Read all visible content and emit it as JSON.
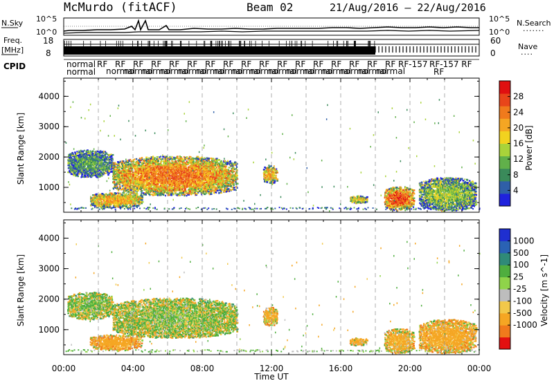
{
  "header": {
    "station": "McMurdo (fitACF)",
    "beam": "Beam 02",
    "date_range": "21/Aug/2016 – 22/Aug/2016"
  },
  "strips": {
    "nsky_label": "N.Sky",
    "nsearch_label": "N.Search",
    "nsky_ticks": [
      "10^5",
      "10^0"
    ],
    "nsearch_ticks": [
      "10^5",
      "10^0"
    ],
    "freq_label_1": "Freq.",
    "freq_label_2": "[MHz]",
    "freq_ticks": [
      "18",
      "8"
    ],
    "nave_label": "Nave",
    "nave_ticks": [
      "60",
      "0"
    ],
    "cpid_label": "CPID",
    "cpid_normal_1": "normal",
    "cpid_normal_2": "normal",
    "cpid_tail": "RF-157",
    "cpid_tail_2": "RF",
    "cpid_tail_3": "RF-157 RF"
  },
  "colors": {
    "power": [
      "#1f22dd",
      "#2f5fa8",
      "#3a8a5a",
      "#61b04a",
      "#a9d33a",
      "#f2d21f",
      "#f5a623",
      "#f07a1c",
      "#e8451a",
      "#e01010"
    ],
    "velocity": [
      "#e31010",
      "#f07a1c",
      "#f5a623",
      "#f2c84a",
      "#bdbdbd",
      "#8fd34a",
      "#4fae3e",
      "#2f8a78",
      "#2a62b4",
      "#1f2fd0"
    ]
  },
  "chart_data": [
    {
      "type": "heatmap",
      "panel": "power",
      "xlabel": "",
      "ylabel": "Slant Range [km]",
      "xlim": [
        "00:00",
        "24:00"
      ],
      "ylim": [
        180,
        4600
      ],
      "yticks": [
        "1000",
        "2000",
        "3000",
        "4000"
      ],
      "colorbar": {
        "label": "Power [dB]",
        "ticks": [
          "4",
          "8",
          "12",
          "16",
          "20",
          "24",
          "28"
        ],
        "range": [
          0,
          32
        ]
      },
      "echo_regions": [
        {
          "t_start": 0.2,
          "t_end": 2.8,
          "r_min": 1300,
          "r_max": 2200,
          "level": 10
        },
        {
          "t_start": 2.8,
          "t_end": 10.0,
          "r_min": 700,
          "r_max": 2000,
          "level": 25
        },
        {
          "t_start": 1.5,
          "t_end": 4.5,
          "r_min": 300,
          "r_max": 800,
          "level": 22
        },
        {
          "t_start": 11.5,
          "t_end": 12.3,
          "r_min": 1100,
          "r_max": 1700,
          "level": 22
        },
        {
          "t_start": 16.5,
          "t_end": 17.5,
          "r_min": 450,
          "r_max": 700,
          "level": 18
        },
        {
          "t_start": 18.5,
          "t_end": 20.2,
          "r_min": 200,
          "r_max": 1000,
          "level": 28
        },
        {
          "t_start": 20.5,
          "t_end": 23.8,
          "r_min": 200,
          "r_max": 1300,
          "level": 14
        }
      ]
    },
    {
      "type": "heatmap",
      "panel": "velocity",
      "xlabel": "Time UT",
      "ylabel": "Slant Range [km]",
      "xlim": [
        "00:00",
        "24:00"
      ],
      "ylim": [
        180,
        4600
      ],
      "xticks": [
        "00:00",
        "04:00",
        "08:00",
        "12:00",
        "16:00",
        "20:00",
        "00:00"
      ],
      "yticks": [
        "1000",
        "2000",
        "3000",
        "4000"
      ],
      "colorbar": {
        "label": "Velocity [m s^-1]",
        "ticks": [
          "1000",
          "500",
          "100",
          "25",
          "-25",
          "-100",
          "-500",
          "-1000"
        ]
      },
      "echo_regions": [
        {
          "t_start": 0.2,
          "t_end": 2.8,
          "r_min": 1300,
          "r_max": 2200,
          "level": 100
        },
        {
          "t_start": 2.8,
          "t_end": 10.0,
          "r_min": 700,
          "r_max": 2000,
          "level": 80
        },
        {
          "t_start": 1.5,
          "t_end": 4.5,
          "r_min": 300,
          "r_max": 800,
          "level": -300
        },
        {
          "t_start": 11.5,
          "t_end": 12.3,
          "r_min": 1100,
          "r_max": 1700,
          "level": -200
        },
        {
          "t_start": 16.5,
          "t_end": 17.5,
          "r_min": 450,
          "r_max": 700,
          "level": -150
        },
        {
          "t_start": 18.5,
          "t_end": 20.2,
          "r_min": 200,
          "r_max": 1000,
          "level": -200
        },
        {
          "t_start": 20.5,
          "t_end": 23.8,
          "r_min": 200,
          "r_max": 1300,
          "level": -250
        }
      ]
    }
  ]
}
